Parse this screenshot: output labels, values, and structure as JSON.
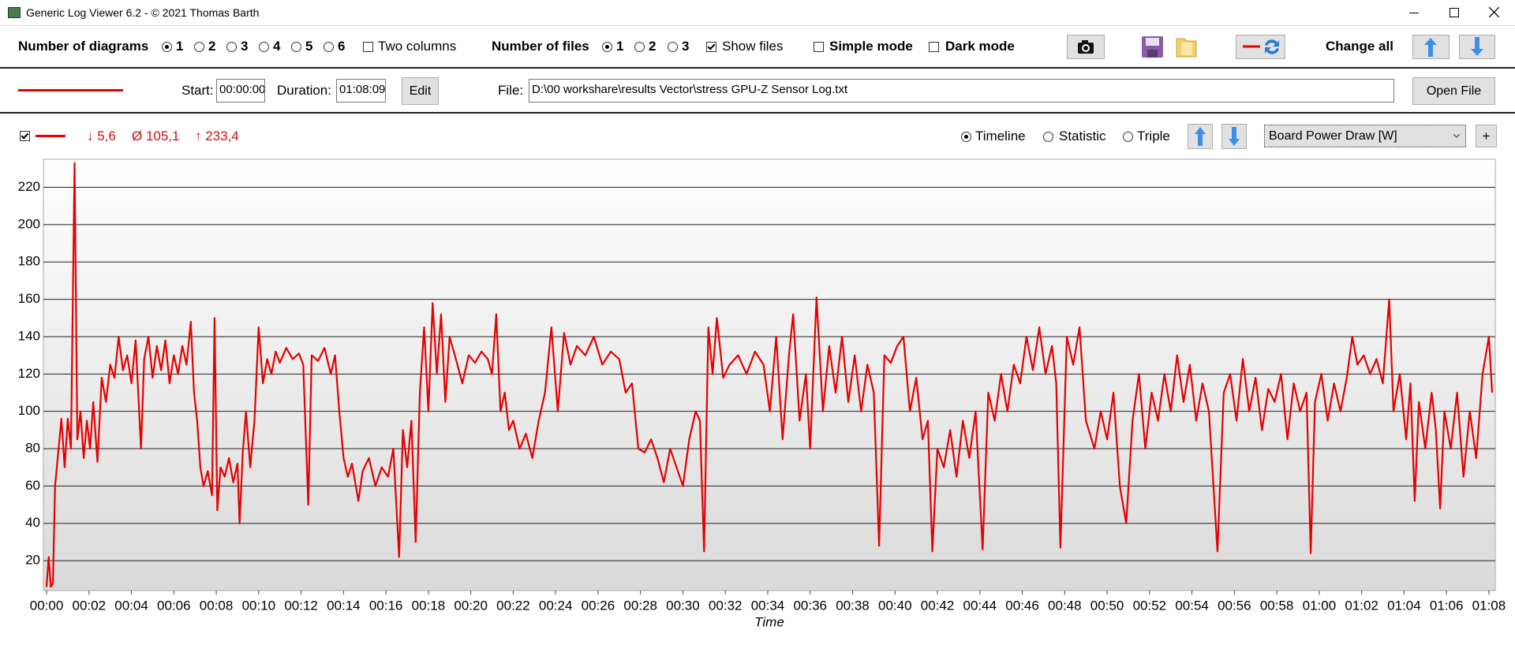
{
  "ui": {
    "window_title": "Generic Log Viewer 6.2 - © 2021 Thomas Barth",
    "toolbar": {
      "diagrams_label": "Number of diagrams",
      "diagram_options": [
        "1",
        "2",
        "3",
        "4",
        "5",
        "6"
      ],
      "two_columns": "Two columns",
      "files_label": "Number of files",
      "file_options": [
        "1",
        "2",
        "3"
      ],
      "show_files": "Show files",
      "simple_mode": "Simple mode",
      "dark_mode": "Dark mode",
      "change_all": "Change all"
    },
    "file_row": {
      "start_label": "Start:",
      "start_value": "00:00:00",
      "duration_label": "Duration:",
      "duration_value": "01:08:09",
      "edit": "Edit",
      "file_label": "File:",
      "file_path": "D:\\00 workshare\\results Vector\\stress GPU-Z Sensor Log.txt",
      "open_file": "Open File"
    },
    "diagram_row": {
      "min": "↓ 5,6",
      "avg": "Ø 105,1",
      "max": "↑ 233,4",
      "modes": [
        "Timeline",
        "Statistic",
        "Triple"
      ],
      "channel": "Board Power Draw [W]",
      "add": "+"
    }
  },
  "chart_data": {
    "type": "line",
    "x_label": "Time",
    "x": [
      0,
      0.1,
      0.2,
      0.3,
      0.4,
      0.55,
      0.7,
      0.85,
      1.0,
      1.15,
      1.32,
      1.45,
      1.6,
      1.75,
      1.9,
      2.05,
      2.2,
      2.4,
      2.6,
      2.8,
      3.0,
      3.2,
      3.4,
      3.6,
      3.8,
      4.0,
      4.2,
      4.45,
      4.6,
      4.8,
      5.0,
      5.2,
      5.4,
      5.6,
      5.8,
      6.0,
      6.2,
      6.4,
      6.6,
      6.8,
      6.95,
      7.1,
      7.25,
      7.4,
      7.6,
      7.8,
      7.92,
      8.05,
      8.2,
      8.4,
      8.6,
      8.8,
      9.0,
      9.1,
      9.25,
      9.4,
      9.6,
      9.8,
      10.0,
      10.2,
      10.4,
      10.6,
      10.8,
      11.0,
      11.3,
      11.6,
      11.9,
      12.1,
      12.34,
      12.5,
      12.8,
      13.1,
      13.4,
      13.6,
      13.8,
      14.0,
      14.2,
      14.4,
      14.7,
      14.9,
      15.2,
      15.5,
      15.8,
      16.1,
      16.35,
      16.62,
      16.8,
      17.0,
      17.2,
      17.4,
      17.6,
      17.8,
      18.0,
      18.2,
      18.4,
      18.6,
      18.8,
      19.0,
      19.3,
      19.6,
      19.9,
      20.2,
      20.5,
      20.8,
      21.0,
      21.2,
      21.4,
      21.6,
      21.8,
      22.0,
      22.3,
      22.6,
      22.9,
      23.2,
      23.5,
      23.8,
      24.1,
      24.4,
      24.7,
      25.0,
      25.4,
      25.8,
      26.2,
      26.6,
      27.0,
      27.3,
      27.6,
      27.9,
      28.2,
      28.5,
      28.8,
      29.1,
      29.4,
      29.7,
      30.0,
      30.3,
      30.6,
      30.8,
      31.0,
      31.2,
      31.4,
      31.6,
      31.9,
      32.2,
      32.6,
      33.0,
      33.4,
      33.8,
      34.1,
      34.4,
      34.7,
      35.0,
      35.2,
      35.5,
      35.8,
      36.0,
      36.3,
      36.6,
      36.9,
      37.2,
      37.5,
      37.8,
      38.1,
      38.4,
      38.7,
      39.0,
      39.25,
      39.5,
      39.8,
      40.1,
      40.4,
      40.7,
      41.0,
      41.3,
      41.55,
      41.76,
      42.0,
      42.3,
      42.6,
      42.9,
      43.2,
      43.5,
      43.8,
      44.13,
      44.4,
      44.7,
      45.0,
      45.3,
      45.6,
      45.9,
      46.2,
      46.5,
      46.8,
      47.1,
      47.4,
      47.6,
      47.8,
      48.1,
      48.4,
      48.7,
      49.0,
      49.4,
      49.7,
      50.0,
      50.3,
      50.6,
      50.9,
      51.2,
      51.5,
      51.8,
      52.1,
      52.4,
      52.7,
      53.0,
      53.3,
      53.6,
      53.9,
      54.2,
      54.5,
      54.8,
      55.2,
      55.5,
      55.8,
      56.1,
      56.4,
      56.7,
      57.0,
      57.3,
      57.6,
      57.9,
      58.2,
      58.5,
      58.8,
      59.1,
      59.4,
      59.6,
      59.8,
      60.1,
      60.4,
      60.7,
      61.0,
      61.3,
      61.56,
      61.8,
      62.1,
      62.4,
      62.7,
      63.0,
      63.3,
      63.5,
      63.8,
      64.1,
      64.3,
      64.5,
      64.7,
      65.0,
      65.3,
      65.5,
      65.7,
      65.9,
      66.2,
      66.5,
      66.8,
      67.1,
      67.4,
      67.7,
      68.0,
      68.15
    ],
    "series": [
      {
        "color": "#e60000",
        "values": [
          6,
          22,
          6,
          8,
          60,
          78,
          96,
          70,
          96,
          80,
          233,
          85,
          100,
          75,
          95,
          80,
          105,
          73,
          118,
          105,
          125,
          118,
          140,
          122,
          130,
          115,
          138,
          80,
          128,
          140,
          118,
          135,
          122,
          138,
          115,
          130,
          120,
          135,
          125,
          148,
          110,
          95,
          70,
          60,
          68,
          55,
          150,
          47,
          70,
          65,
          75,
          62,
          72,
          40,
          78,
          100,
          70,
          95,
          145,
          115,
          128,
          120,
          132,
          126,
          134,
          128,
          131,
          125,
          50,
          130,
          127,
          134,
          120,
          130,
          100,
          75,
          65,
          72,
          52,
          68,
          75,
          60,
          70,
          65,
          80,
          22,
          90,
          70,
          95,
          30,
          110,
          145,
          100,
          158,
          120,
          152,
          105,
          140,
          128,
          115,
          130,
          126,
          132,
          128,
          120,
          152,
          100,
          110,
          90,
          95,
          80,
          88,
          75,
          95,
          110,
          145,
          100,
          142,
          125,
          135,
          130,
          140,
          125,
          132,
          128,
          110,
          115,
          80,
          78,
          85,
          75,
          62,
          80,
          70,
          60,
          85,
          100,
          95,
          25,
          145,
          120,
          150,
          118,
          125,
          130,
          120,
          132,
          125,
          100,
          140,
          85,
          130,
          152,
          95,
          120,
          80,
          161,
          100,
          135,
          110,
          140,
          105,
          130,
          100,
          125,
          110,
          28,
          130,
          126,
          135,
          140,
          100,
          118,
          85,
          95,
          25,
          80,
          70,
          90,
          65,
          95,
          75,
          100,
          26,
          110,
          95,
          120,
          100,
          125,
          115,
          140,
          122,
          145,
          120,
          135,
          115,
          27,
          140,
          125,
          145,
          95,
          80,
          100,
          85,
          110,
          60,
          40,
          95,
          120,
          80,
          110,
          95,
          120,
          100,
          130,
          105,
          125,
          95,
          115,
          100,
          25,
          110,
          120,
          95,
          128,
          100,
          118,
          90,
          112,
          105,
          120,
          85,
          115,
          100,
          110,
          24,
          105,
          120,
          95,
          115,
          100,
          118,
          140,
          125,
          130,
          120,
          128,
          115,
          160,
          100,
          120,
          85,
          115,
          52,
          105,
          80,
          110,
          90,
          48,
          100,
          80,
          110,
          65,
          100,
          75,
          120,
          140,
          110
        ]
      }
    ],
    "xlim": [
      -0.15,
      68.3
    ],
    "ylim": [
      4,
      235
    ],
    "yticks": [
      20,
      40,
      60,
      80,
      100,
      120,
      140,
      160,
      180,
      200,
      220
    ],
    "xticks": [
      {
        "value": 0,
        "label": "00:00"
      },
      {
        "value": 2,
        "label": "00:02"
      },
      {
        "value": 4,
        "label": "00:04"
      },
      {
        "value": 6,
        "label": "00:06"
      },
      {
        "value": 8,
        "label": "00:08"
      },
      {
        "value": 10,
        "label": "00:10"
      },
      {
        "value": 12,
        "label": "00:12"
      },
      {
        "value": 14,
        "label": "00:14"
      },
      {
        "value": 16,
        "label": "00:16"
      },
      {
        "value": 18,
        "label": "00:18"
      },
      {
        "value": 20,
        "label": "00:20"
      },
      {
        "value": 22,
        "label": "00:22"
      },
      {
        "value": 24,
        "label": "00:24"
      },
      {
        "value": 26,
        "label": "00:26"
      },
      {
        "value": 28,
        "label": "00:28"
      },
      {
        "value": 30,
        "label": "00:30"
      },
      {
        "value": 32,
        "label": "00:32"
      },
      {
        "value": 34,
        "label": "00:34"
      },
      {
        "value": 36,
        "label": "00:36"
      },
      {
        "value": 38,
        "label": "00:38"
      },
      {
        "value": 40,
        "label": "00:40"
      },
      {
        "value": 42,
        "label": "00:42"
      },
      {
        "value": 44,
        "label": "00:44"
      },
      {
        "value": 46,
        "label": "00:46"
      },
      {
        "value": 48,
        "label": "00:48"
      },
      {
        "value": 50,
        "label": "00:50"
      },
      {
        "value": 52,
        "label": "00:52"
      },
      {
        "value": 54,
        "label": "00:54"
      },
      {
        "value": 56,
        "label": "00:56"
      },
      {
        "value": 58,
        "label": "00:58"
      },
      {
        "value": 60,
        "label": "01:00"
      },
      {
        "value": 62,
        "label": "01:02"
      },
      {
        "value": 64,
        "label": "01:04"
      },
      {
        "value": 66,
        "label": "01:06"
      },
      {
        "value": 68,
        "label": "01:08"
      }
    ],
    "grid": true
  }
}
